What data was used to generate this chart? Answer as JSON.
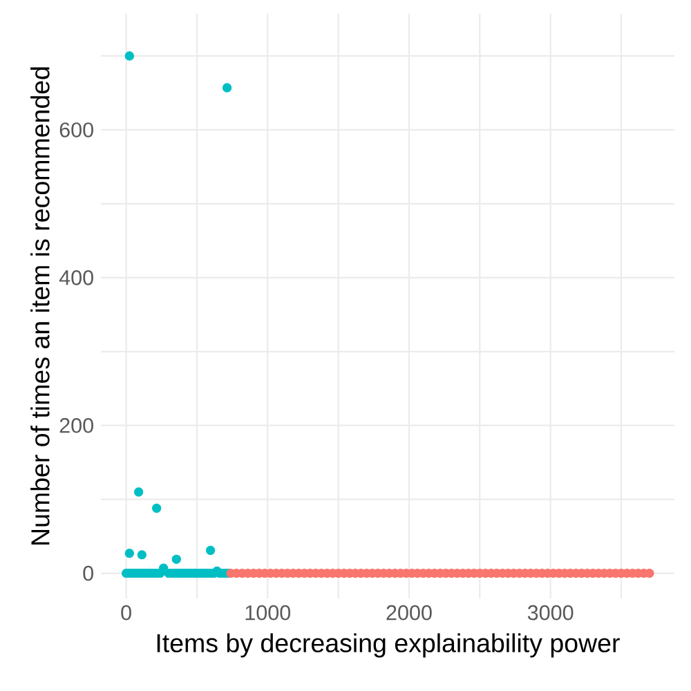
{
  "chart_data": {
    "type": "scatter",
    "xlabel": "Items by decreasing explainability power",
    "ylabel": "Number of times an item is recommended",
    "xlim": [
      -179,
      3876
    ],
    "ylim": [
      -34,
      757
    ],
    "xticks": [
      0,
      {
        "value": 500,
        "label": null
      },
      1000,
      {
        "value": 1500,
        "label": null
      },
      2000,
      {
        "value": 2500,
        "label": null
      },
      3000,
      {
        "value": 3500,
        "label": null
      }
    ],
    "yticks": [
      0,
      {
        "value": 100,
        "label": null
      },
      200,
      {
        "value": 300,
        "label": null
      },
      400,
      {
        "value": 500,
        "label": null
      },
      600,
      {
        "value": 700,
        "label": null
      }
    ],
    "grid": true,
    "marker": "circle",
    "series": [
      {
        "color": "#00bfc4",
        "x": [
          0,
          20,
          40,
          60,
          80,
          100,
          120,
          140,
          160,
          180,
          200,
          220,
          240,
          300,
          320,
          340,
          360,
          380,
          400,
          420,
          440,
          460,
          480,
          500,
          520,
          540,
          560,
          580,
          600,
          620,
          660,
          680,
          700,
          720,
          23,
          713,
          88,
          215,
          23,
          111,
          596,
          355,
          264,
          642
        ],
        "values": [
          0,
          0,
          0,
          0,
          0,
          0,
          0,
          0,
          0,
          0,
          0,
          0,
          0,
          0,
          0,
          0,
          0,
          0,
          0,
          0,
          0,
          0,
          0,
          0,
          0,
          0,
          0,
          0,
          0,
          0,
          0,
          0,
          0,
          0,
          700,
          657,
          110,
          88,
          27,
          25,
          31,
          19,
          7,
          3
        ]
      },
      {
        "color": "#f8766d",
        "x": [
          740,
          780,
          820,
          860,
          900,
          940,
          980,
          1020,
          1060,
          1100,
          1140,
          1180,
          1220,
          1260,
          1300,
          1340,
          1380,
          1420,
          1460,
          1500,
          1540,
          1580,
          1620,
          1660,
          1700,
          1740,
          1780,
          1820,
          1860,
          1900,
          1940,
          1980,
          2020,
          2060,
          2100,
          2140,
          2180,
          2220,
          2260,
          2300,
          2340,
          2380,
          2420,
          2460,
          2500,
          2540,
          2580,
          2620,
          2660,
          2700,
          2740,
          2780,
          2820,
          2860,
          2900,
          2940,
          2980,
          3020,
          3060,
          3100,
          3140,
          3180,
          3220,
          3260,
          3300,
          3340,
          3380,
          3420,
          3460,
          3500,
          3540,
          3580,
          3620,
          3660,
          3700
        ],
        "values": [
          0,
          0,
          0,
          0,
          0,
          0,
          0,
          0,
          0,
          0,
          0,
          0,
          0,
          0,
          0,
          0,
          0,
          0,
          0,
          0,
          0,
          0,
          0,
          0,
          0,
          0,
          0,
          0,
          0,
          0,
          0,
          0,
          0,
          0,
          0,
          0,
          0,
          0,
          0,
          0,
          0,
          0,
          0,
          0,
          0,
          0,
          0,
          0,
          0,
          0,
          0,
          0,
          0,
          0,
          0,
          0,
          0,
          0,
          0,
          0,
          0,
          0,
          0,
          0,
          0,
          0,
          0,
          0,
          0,
          0,
          0,
          0,
          0,
          0,
          0
        ]
      }
    ]
  }
}
